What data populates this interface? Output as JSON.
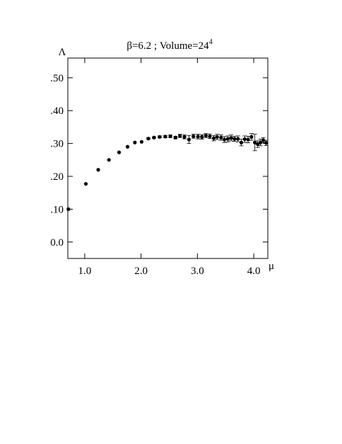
{
  "chart_data": {
    "type": "scatter",
    "title": "β=6.2 ; Volume=24",
    "title_superscript": "4",
    "xlabel": "μ",
    "ylabel": "Λ",
    "xlim": [
      0.7,
      4.25
    ],
    "ylim": [
      -0.05,
      0.56
    ],
    "x_ticks": [
      1.0,
      2.0,
      3.0,
      4.0
    ],
    "x_tick_labels": [
      "1.0",
      "2.0",
      "3.0",
      "4.0"
    ],
    "y_ticks": [
      0.0,
      0.1,
      0.2,
      0.3,
      0.4,
      0.5
    ],
    "y_tick_labels": [
      "0.0",
      ".10",
      ".20",
      ".30",
      ".40",
      ".50"
    ],
    "grid": false,
    "legend": "none",
    "marker_color": "#000000",
    "series": [
      {
        "points": [
          {
            "x": 0.71,
            "y": 0.1,
            "err": 0
          },
          {
            "x": 1.02,
            "y": 0.177,
            "err": 0
          },
          {
            "x": 1.24,
            "y": 0.22,
            "err": 0
          },
          {
            "x": 1.43,
            "y": 0.25,
            "err": 0
          },
          {
            "x": 1.61,
            "y": 0.273,
            "err": 0
          },
          {
            "x": 1.76,
            "y": 0.29,
            "err": 0
          },
          {
            "x": 1.89,
            "y": 0.303,
            "err": 0
          },
          {
            "x": 2.01,
            "y": 0.305,
            "err": 0
          },
          {
            "x": 2.13,
            "y": 0.315,
            "err": 0.002
          },
          {
            "x": 2.23,
            "y": 0.318,
            "err": 0.002
          },
          {
            "x": 2.33,
            "y": 0.32,
            "err": 0.003
          },
          {
            "x": 2.43,
            "y": 0.321,
            "err": 0.003
          },
          {
            "x": 2.52,
            "y": 0.322,
            "err": 0.004
          },
          {
            "x": 2.61,
            "y": 0.318,
            "err": 0.004
          },
          {
            "x": 2.69,
            "y": 0.323,
            "err": 0.005
          },
          {
            "x": 2.77,
            "y": 0.32,
            "err": 0.006
          },
          {
            "x": 2.85,
            "y": 0.312,
            "err": 0.012
          },
          {
            "x": 2.93,
            "y": 0.322,
            "err": 0.006
          },
          {
            "x": 3.01,
            "y": 0.321,
            "err": 0.007
          },
          {
            "x": 3.08,
            "y": 0.32,
            "err": 0.007
          },
          {
            "x": 3.15,
            "y": 0.324,
            "err": 0.006
          },
          {
            "x": 3.22,
            "y": 0.322,
            "err": 0.007
          },
          {
            "x": 3.29,
            "y": 0.316,
            "err": 0.008
          },
          {
            "x": 3.35,
            "y": 0.32,
            "err": 0.008
          },
          {
            "x": 3.42,
            "y": 0.318,
            "err": 0.008
          },
          {
            "x": 3.48,
            "y": 0.312,
            "err": 0.009
          },
          {
            "x": 3.54,
            "y": 0.314,
            "err": 0.009
          },
          {
            "x": 3.6,
            "y": 0.317,
            "err": 0.009
          },
          {
            "x": 3.66,
            "y": 0.314,
            "err": 0.008
          },
          {
            "x": 3.72,
            "y": 0.314,
            "err": 0.009
          },
          {
            "x": 3.78,
            "y": 0.303,
            "err": 0.01
          },
          {
            "x": 3.84,
            "y": 0.313,
            "err": 0.01
          },
          {
            "x": 3.9,
            "y": 0.312,
            "err": 0.01
          },
          {
            "x": 3.96,
            "y": 0.32,
            "err": 0.01
          },
          {
            "x": 4.02,
            "y": 0.303,
            "err": 0.025
          },
          {
            "x": 4.07,
            "y": 0.298,
            "err": 0.01
          },
          {
            "x": 4.12,
            "y": 0.303,
            "err": 0.01
          },
          {
            "x": 4.17,
            "y": 0.31,
            "err": 0.008
          },
          {
            "x": 4.22,
            "y": 0.302,
            "err": 0.008
          }
        ]
      }
    ]
  }
}
